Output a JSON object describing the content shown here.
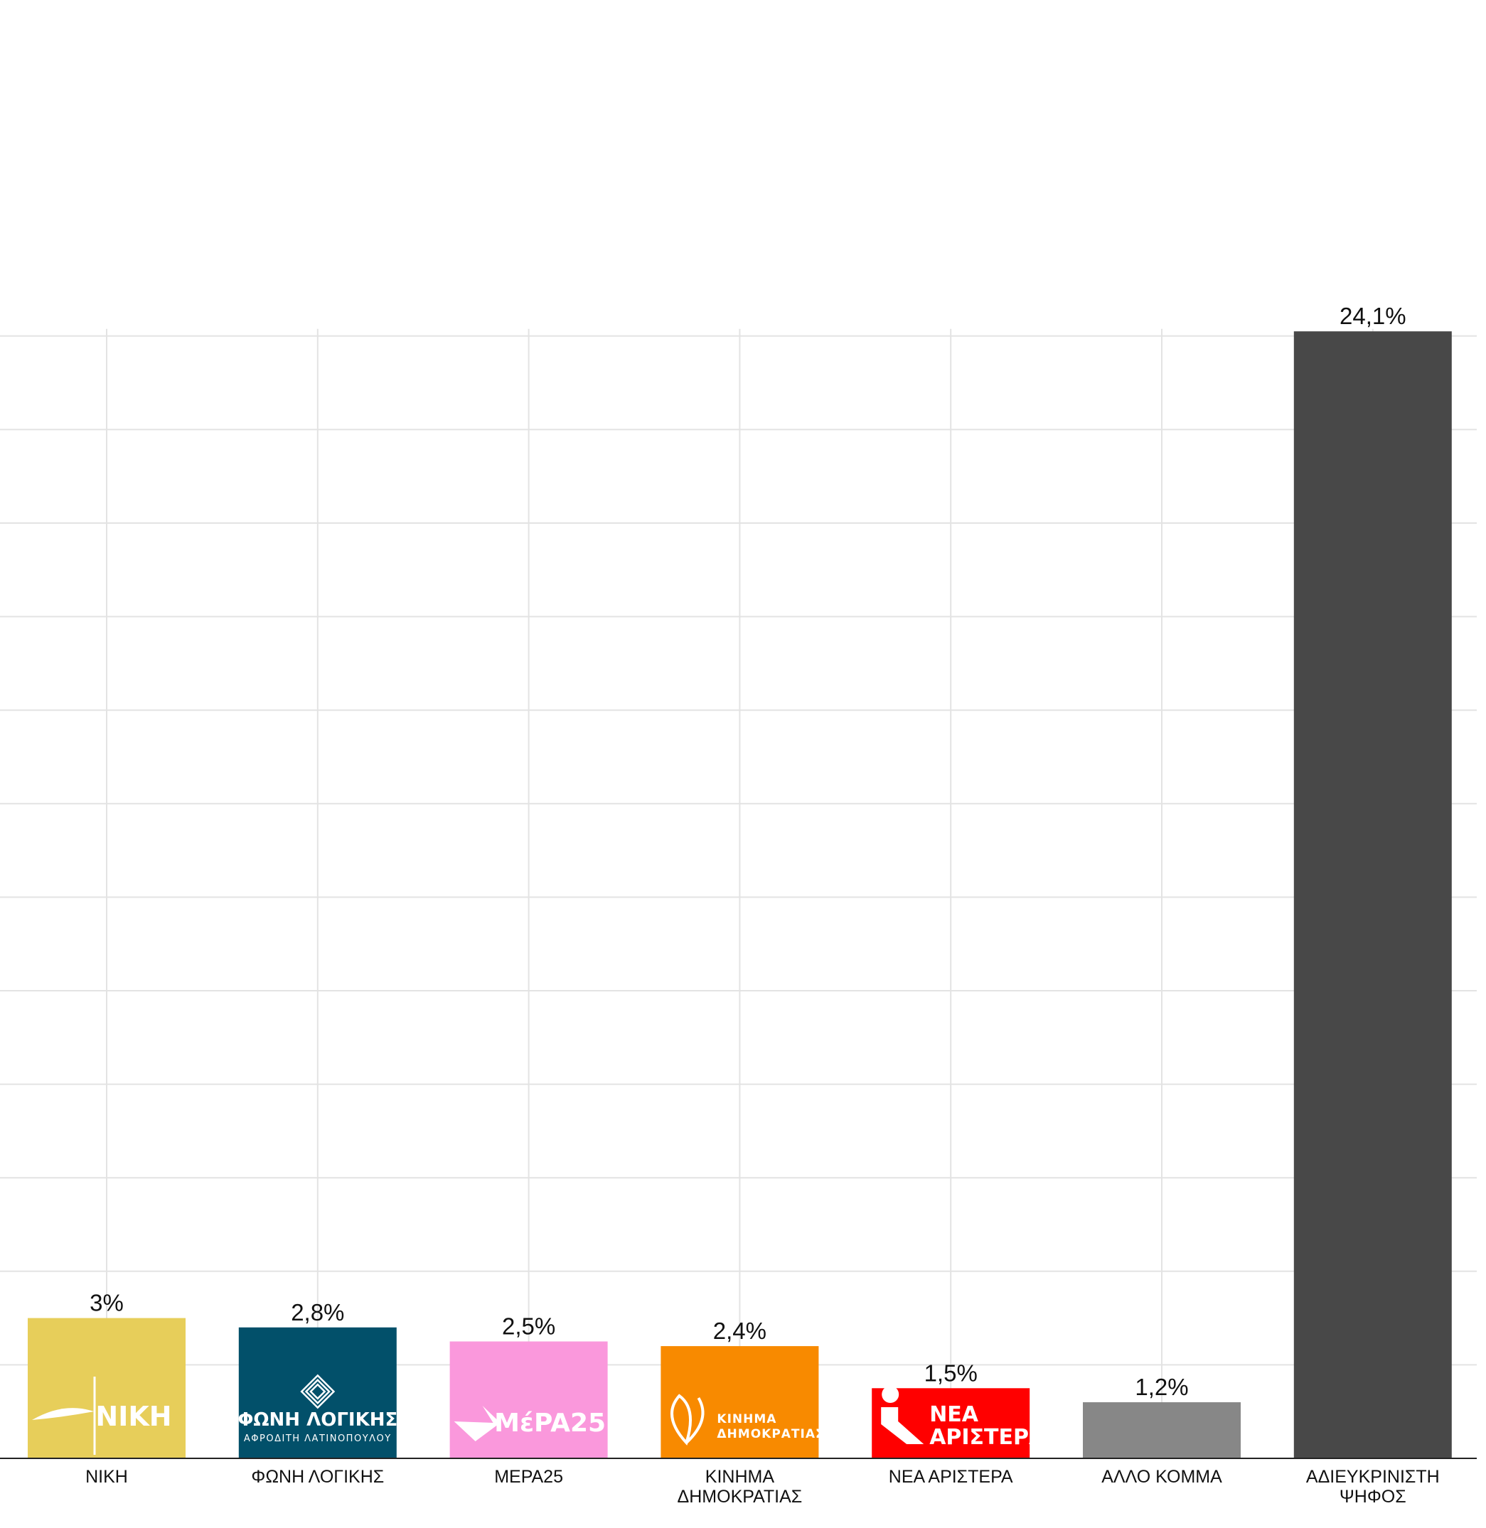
{
  "chart_data": {
    "type": "bar",
    "categories": [
      [
        "ΝΙΚΗ"
      ],
      [
        "ΦΩΝΗ ΛΟΓΙΚΗΣ"
      ],
      [
        "ΜΕΡΑ25"
      ],
      [
        "ΚΙΝΗΜΑ",
        "ΔΗΜΟΚΡΑΤΙΑΣ"
      ],
      [
        "ΝΕΑ ΑΡΙΣΤΕΡΑ"
      ],
      [
        "ΑΛΛΟ ΚΟΜΜΑ"
      ],
      [
        "ΑΔΙΕΥΚΡΙΝΙΣΤΗ",
        "ΨΗΦΟΣ"
      ]
    ],
    "values": [
      3.0,
      2.8,
      2.5,
      2.4,
      1.5,
      1.2,
      24.1
    ],
    "value_labels": [
      "3%",
      "2,8%",
      "2,5%",
      "2,4%",
      "1,5%",
      "1,2%",
      "24,1%"
    ],
    "colors": [
      "#E7CE5A",
      "#02506A",
      "#FA98DC",
      "#F88A00",
      "#FF0000",
      "#878787",
      "#484848"
    ],
    "logos": [
      {
        "icon": "niki-logo",
        "lines": [
          "ΝΙΚΗ"
        ]
      },
      {
        "icon": "foni-logikis-logo",
        "lines": [
          "ΦΩΝΗ ΛΟΓΙΚΗΣ",
          "ΑΦΡΟΔΙΤΗ ΛΑΤΙΝΟΠΟΥΛΟΥ"
        ]
      },
      {
        "icon": "mera25-logo",
        "lines": [
          "MέPA25"
        ]
      },
      {
        "icon": "kinima-dimokratias-logo",
        "lines": [
          "ΚΙΝΗΜΑ",
          "ΔΗΜΟΚΡΑΤΙΑΣ"
        ]
      },
      {
        "icon": "nea-aristera-logo",
        "lines": [
          "ΝΕΑ",
          "ΑΡΙΣΤΕΡΑ"
        ]
      },
      null,
      null
    ],
    "ylim": [
      0,
      24
    ],
    "y_gridline_step": 2,
    "grid": true,
    "title": "",
    "xlabel": "",
    "ylabel": ""
  }
}
